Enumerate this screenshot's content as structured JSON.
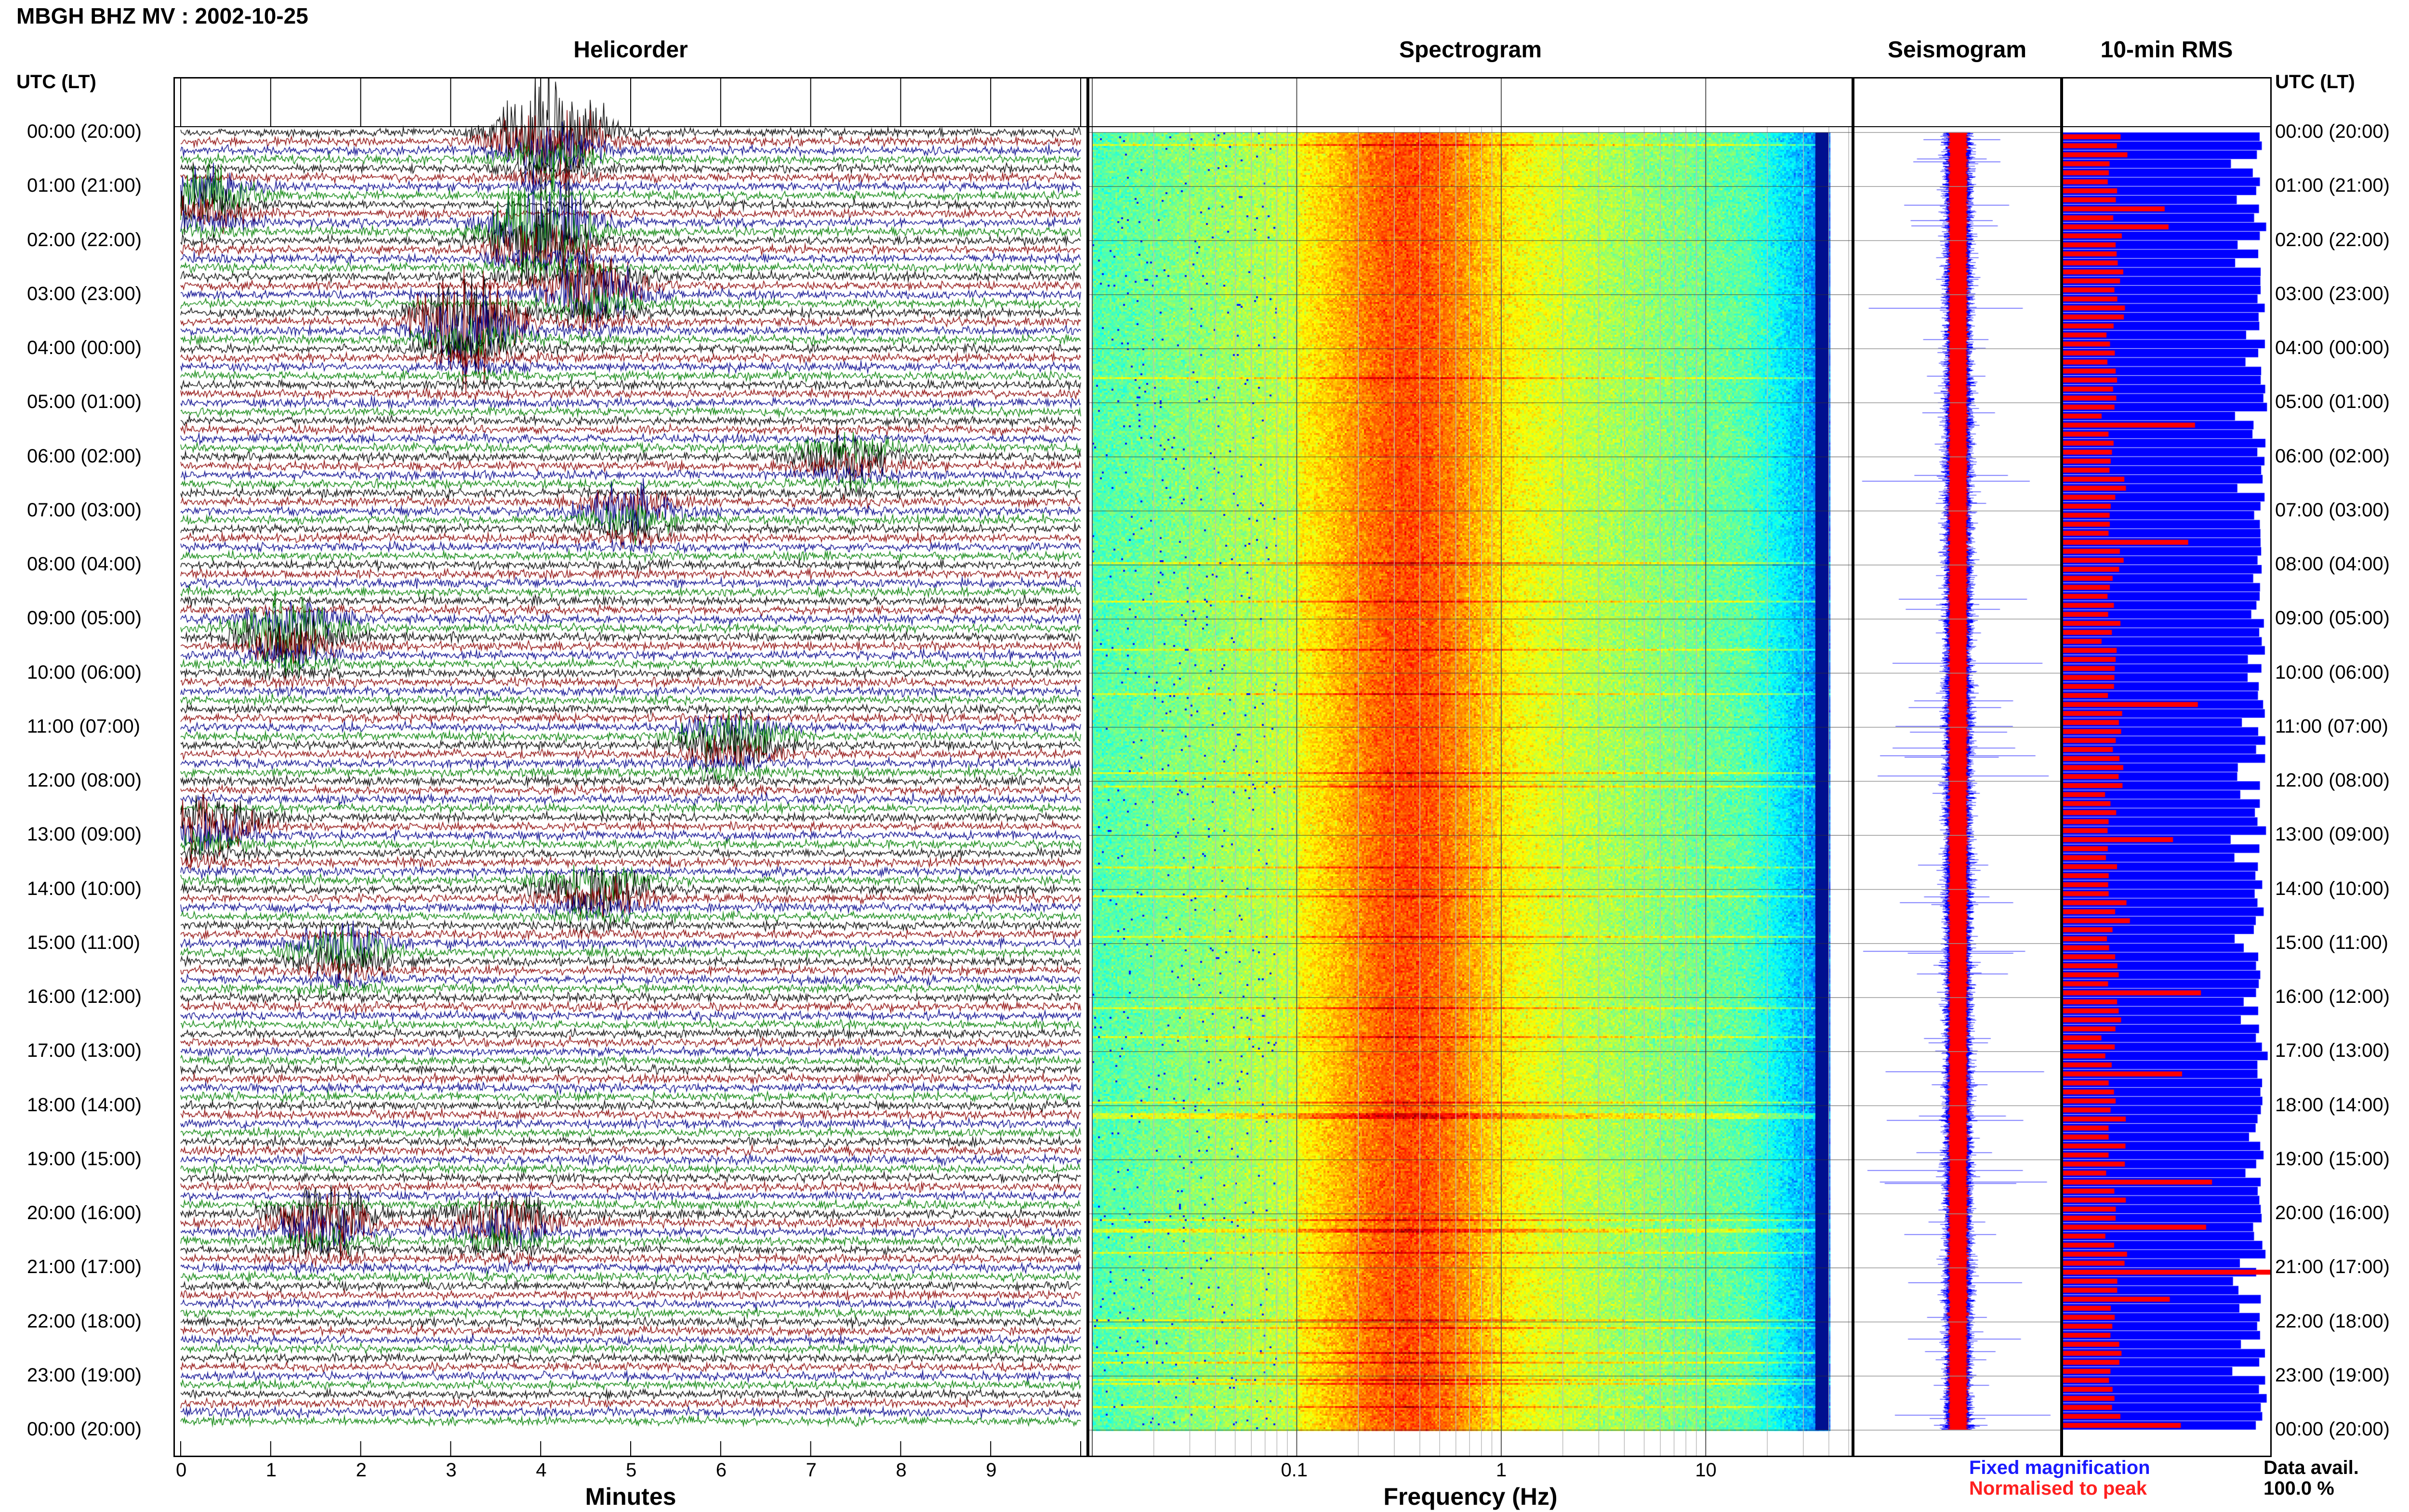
{
  "header": {
    "station_title": "MBGH BHZ MV : 2002-10-25",
    "utc_label_left": "UTC (LT)",
    "utc_label_right": "UTC (LT)"
  },
  "panels": {
    "helicorder": "Helicorder",
    "spectrogram": "Spectrogram",
    "seismogram": "Seismogram",
    "rms": "10-min RMS"
  },
  "time_labels": [
    "00:00 (20:00)",
    "01:00 (21:00)",
    "02:00 (22:00)",
    "03:00 (23:00)",
    "04:00 (00:00)",
    "05:00 (01:00)",
    "06:00 (02:00)",
    "07:00 (03:00)",
    "08:00 (04:00)",
    "09:00 (05:00)",
    "10:00 (06:00)",
    "11:00 (07:00)",
    "12:00 (08:00)",
    "13:00 (09:00)",
    "14:00 (10:00)",
    "15:00 (11:00)",
    "16:00 (12:00)",
    "17:00 (13:00)",
    "18:00 (14:00)",
    "19:00 (15:00)",
    "20:00 (16:00)",
    "21:00 (17:00)",
    "22:00 (18:00)",
    "23:00 (19:00)",
    "00:00 (20:00)"
  ],
  "legend": {
    "fixed": "Fixed magnification",
    "normalised": "Normalised to peak",
    "data_avail_label": "Data avail.",
    "data_avail_value": "100.0 %"
  },
  "colors": {
    "trace_colors": [
      "#000000",
      "#8b0000",
      "#00008b",
      "#008000"
    ],
    "fixed": "#0000ff",
    "normalised": "#ff0000"
  },
  "chart_data": [
    {
      "type": "line",
      "name": "helicorder",
      "title": "Helicorder",
      "xlabel": "Minutes",
      "x_ticks": [
        "0",
        "1",
        "2",
        "3",
        "4",
        "5",
        "6",
        "7",
        "8",
        "9"
      ],
      "xlim": [
        0,
        10
      ],
      "rows": 144,
      "row_minutes": 10,
      "events": [
        {
          "hour": 0.0,
          "minute": 4.1,
          "amp": 1.0
        },
        {
          "hour": 1.8,
          "minute": 4.0,
          "amp": 0.85
        },
        {
          "hour": 2.9,
          "minute": 4.6,
          "amp": 0.5
        },
        {
          "hour": 3.5,
          "minute": 3.2,
          "amp": 0.75
        },
        {
          "hour": 1.2,
          "minute": 0.2,
          "amp": 0.45
        },
        {
          "hour": 9.2,
          "minute": 1.2,
          "amp": 0.55
        },
        {
          "hour": 11.2,
          "minute": 6.1,
          "amp": 0.4
        },
        {
          "hour": 12.8,
          "minute": 0.3,
          "amp": 0.35
        },
        {
          "hour": 14.0,
          "minute": 4.6,
          "amp": 0.35
        },
        {
          "hour": 15.1,
          "minute": 1.8,
          "amp": 0.35
        },
        {
          "hour": 20.1,
          "minute": 1.6,
          "amp": 0.5
        },
        {
          "hour": 20.1,
          "minute": 3.6,
          "amp": 0.4
        },
        {
          "hour": 7.0,
          "minute": 5.0,
          "amp": 0.3
        },
        {
          "hour": 6.0,
          "minute": 7.4,
          "amp": 0.25
        }
      ]
    },
    {
      "type": "heatmap",
      "name": "spectrogram",
      "title": "Spectrogram",
      "xlabel": "Frequency (Hz)",
      "x_scale": "log",
      "x_ticks": [
        "0.1",
        "1",
        "10"
      ],
      "x_tick_values": [
        0.1,
        1,
        10
      ],
      "xlim": [
        0.01,
        50
      ],
      "data_xlim": [
        0.01,
        40
      ],
      "peak_frequency_hz": 0.35
    },
    {
      "type": "line",
      "name": "seismogram",
      "title": "Seismogram",
      "series": [
        {
          "name": "Fixed magnification",
          "color": "#0000ff"
        },
        {
          "name": "Normalised to peak",
          "color": "#ff0000"
        }
      ]
    },
    {
      "type": "bar",
      "name": "rms",
      "title": "10-min RMS",
      "orientation": "horizontal",
      "bars": 144,
      "series": [
        {
          "name": "Fixed magnification",
          "color": "#0000ff",
          "typical_fraction": 0.95
        },
        {
          "name": "Normalised to peak",
          "color": "#ff0000",
          "typical_fraction": 0.25
        }
      ]
    }
  ]
}
